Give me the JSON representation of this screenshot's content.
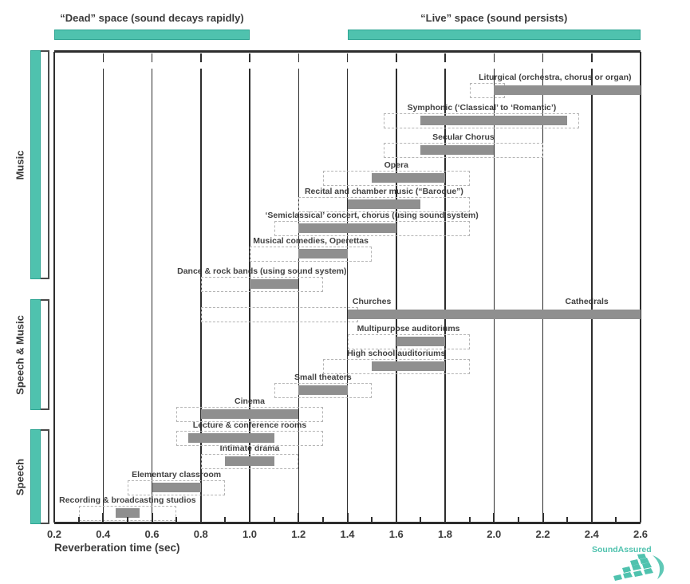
{
  "header": {
    "dead_label": "“Dead” space (sound decays rapidly)",
    "live_label": "“Live” space (sound persists)"
  },
  "logo": {
    "text": "SoundAssured"
  },
  "colors": {
    "teal": "#4fc2ae",
    "bar_gray": "#8f8f8f",
    "dashed_border": "#b4b4b4",
    "axis": "#2d2d2d",
    "text": "#3b3b3b"
  },
  "chart_data": {
    "type": "bar",
    "subtype": "horizontal-range-gantt",
    "xlabel": "Reverberation time (sec)",
    "xlim": [
      0.2,
      2.6
    ],
    "x_major_ticks": [
      0.2,
      0.4,
      0.6,
      0.8,
      1.0,
      1.2,
      1.4,
      1.6,
      1.8,
      2.0,
      2.2,
      2.4,
      2.6
    ],
    "x_minor_step": 0.1,
    "grid": true,
    "legend": "solid bar = typical range, dashed box = acceptable range",
    "header_ranges": {
      "dead_space": [
        0.2,
        1.0
      ],
      "live_space": [
        1.4,
        2.6
      ]
    },
    "groups": [
      {
        "label": "Music"
      },
      {
        "label": "Speech & Music"
      },
      {
        "label": "Speech"
      }
    ],
    "rows": [
      {
        "group": 0,
        "label": "Liturgical (orchestra, chorus or organ)",
        "solid": [
          2.0,
          2.6
        ],
        "dashed": [
          1.9,
          2.6
        ]
      },
      {
        "group": 0,
        "label": "Symphonic (‘Classical’ to ‘Romantic’)",
        "solid": [
          1.7,
          2.3
        ],
        "dashed": [
          1.55,
          2.35
        ]
      },
      {
        "group": 0,
        "label": "Secular Chorus",
        "solid": [
          1.7,
          2.0
        ],
        "dashed": [
          1.55,
          2.2
        ]
      },
      {
        "group": 0,
        "label": "Opera",
        "solid": [
          1.5,
          1.8
        ],
        "dashed": [
          1.3,
          1.9
        ]
      },
      {
        "group": 0,
        "label": "Recital and chamber music (“Baroque”)",
        "solid": [
          1.4,
          1.7
        ],
        "dashed": [
          1.2,
          1.9
        ]
      },
      {
        "group": 0,
        "label": "‘Semiclassical’ concert, chorus (using sound system)",
        "solid": [
          1.2,
          1.6
        ],
        "dashed": [
          1.1,
          1.9
        ]
      },
      {
        "group": 0,
        "label": "Musical comedies, Operettas",
        "solid": [
          1.2,
          1.4
        ],
        "dashed": [
          1.0,
          1.5
        ]
      },
      {
        "group": 0,
        "label": "Dance & rock bands (using sound system)",
        "solid": [
          1.0,
          1.2
        ],
        "dashed": [
          0.8,
          1.3
        ]
      },
      {
        "group": 1,
        "label": "Churches",
        "label2": "Cathedrals",
        "solid": [
          1.4,
          2.6
        ],
        "dashed": [
          0.8,
          2.6
        ]
      },
      {
        "group": 1,
        "label": "Multipurpose auditoriums",
        "solid": [
          1.6,
          1.8
        ],
        "dashed": [
          1.4,
          1.9
        ]
      },
      {
        "group": 1,
        "label": "High school auditoriums",
        "solid": [
          1.5,
          1.8
        ],
        "dashed": [
          1.3,
          1.9
        ]
      },
      {
        "group": 1,
        "label": "Small theaters",
        "solid": [
          1.2,
          1.4
        ],
        "dashed": [
          1.1,
          1.5
        ]
      },
      {
        "group": 1,
        "label": "Cinema",
        "solid": [
          0.8,
          1.2
        ],
        "dashed": [
          0.7,
          1.3
        ]
      },
      {
        "group": 2,
        "label": "Lecture & conference rooms",
        "solid": [
          0.75,
          1.1
        ],
        "dashed": [
          0.7,
          1.3
        ]
      },
      {
        "group": 2,
        "label": "Intimate drama",
        "solid": [
          0.9,
          1.1
        ],
        "dashed": [
          0.8,
          1.2
        ]
      },
      {
        "group": 2,
        "label": "Elementary classroom",
        "solid": [
          0.6,
          0.8
        ],
        "dashed": [
          0.5,
          0.9
        ]
      },
      {
        "group": 2,
        "label": "Recording & broadcasting studios",
        "solid": [
          0.45,
          0.55
        ],
        "dashed": [
          0.3,
          0.7
        ]
      }
    ]
  }
}
